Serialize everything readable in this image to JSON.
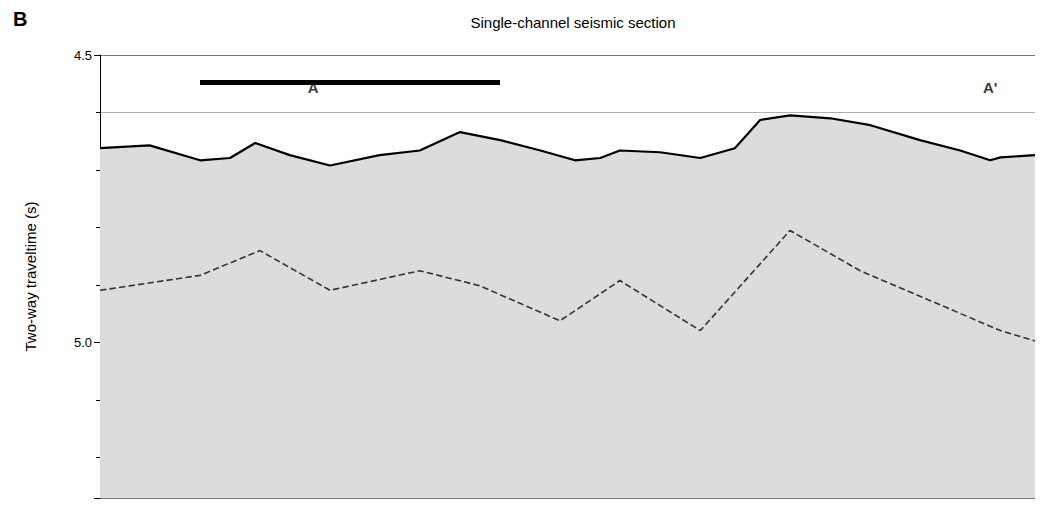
{
  "chart_data": {
    "type": "line",
    "panel": "B",
    "title": "Single-channel seismic section",
    "y_label": "Two-way traveltime (s)",
    "ylim": [
      4.5,
      5.27
    ],
    "yticks": [
      4.5,
      {
        "value": 5,
        "label": "5.0"
      }
    ],
    "xlim": [
      0,
      100
    ],
    "tick_labels": "y",
    "grid": true,
    "series": [
      {
        "color": "#000000",
        "line_style": "solid",
        "x": [
          0,
          5.3,
          10.7,
          13.9,
          16.6,
          20.3,
          24.6,
          29.9,
          34.2,
          38.5,
          42.8,
          47.1,
          50.8,
          53.5,
          55.6,
          59.9,
          64.2,
          67.9,
          70.6,
          73.8,
          78.1,
          82.4,
          87.7,
          92.0,
          95.2,
          96.3,
          100
        ],
        "values": [
          4.662,
          4.657,
          4.683,
          4.679,
          4.653,
          4.674,
          4.692,
          4.674,
          4.666,
          4.634,
          4.648,
          4.666,
          4.683,
          4.679,
          4.666,
          4.669,
          4.679,
          4.662,
          4.613,
          4.605,
          4.61,
          4.622,
          4.648,
          4.666,
          4.683,
          4.678,
          4.674
        ]
      },
      {
        "color": "#333333",
        "line_style": "dashed",
        "x": [
          0,
          10.7,
          17.1,
          24.6,
          34.2,
          40.6,
          49.2,
          55.6,
          64.2,
          73.8,
          81.3,
          88.8,
          96.3,
          100
        ],
        "values": [
          4.909,
          4.883,
          4.84,
          4.909,
          4.875,
          4.901,
          4.962,
          4.892,
          4.979,
          4.805,
          4.875,
          4.927,
          4.979,
          4.997
        ]
      }
    ],
    "annotations": [
      {
        "text": "A",
        "x": 22.8,
        "y": 4.557
      },
      {
        "text": "A'",
        "x": 95.2,
        "y": 4.557
      }
    ]
  }
}
